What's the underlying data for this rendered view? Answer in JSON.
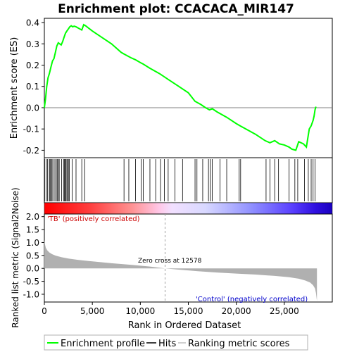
{
  "chart_data": {
    "type": "line",
    "title": "Enrichment plot: CCACACA_MIR147",
    "top_panel": {
      "ylabel": "Enrichment score (ES)",
      "ylim": [
        -0.235,
        0.42
      ],
      "yticks": [
        -0.2,
        -0.1,
        0.0,
        0.1,
        0.2,
        0.3,
        0.4
      ],
      "ytick_labels": [
        "-0.2",
        "-0.1",
        "0.0",
        "0.1",
        "0.2",
        "0.3",
        "0.4"
      ],
      "series": [
        {
          "name": "Enrichment profile",
          "color": "#00ff00",
          "x": [
            0,
            120,
            250,
            380,
            520,
            680,
            850,
            1000,
            1150,
            1300,
            1450,
            1600,
            1750,
            1900,
            2050,
            2200,
            2350,
            2500,
            2650,
            2800,
            2950,
            3100,
            3300,
            3500,
            3700,
            3900,
            4100,
            4300,
            5000,
            6000,
            7000,
            8000,
            8300,
            9000,
            9500,
            10000,
            10300,
            11000,
            12000,
            13000,
            14000,
            15000,
            15700,
            16300,
            16800,
            17200,
            17500,
            18000,
            19000,
            20000,
            20400,
            21000,
            22000,
            23000,
            23500,
            24000,
            24500,
            25000,
            25500,
            25800,
            26200,
            26500,
            27000,
            27300,
            27600,
            27800,
            28000,
            28100,
            28200,
            28300
          ],
          "y": [
            0.0,
            0.04,
            0.1,
            0.14,
            0.16,
            0.19,
            0.22,
            0.23,
            0.26,
            0.29,
            0.305,
            0.3,
            0.295,
            0.31,
            0.33,
            0.35,
            0.36,
            0.37,
            0.38,
            0.385,
            0.38,
            0.383,
            0.38,
            0.375,
            0.37,
            0.365,
            0.39,
            0.385,
            0.36,
            0.33,
            0.3,
            0.26,
            0.252,
            0.235,
            0.225,
            0.212,
            0.205,
            0.185,
            0.16,
            0.13,
            0.1,
            0.07,
            0.03,
            0.015,
            0.0,
            -0.01,
            -0.005,
            -0.02,
            -0.045,
            -0.075,
            -0.085,
            -0.1,
            -0.125,
            -0.155,
            -0.165,
            -0.155,
            -0.17,
            -0.175,
            -0.185,
            -0.195,
            -0.2,
            -0.16,
            -0.17,
            -0.185,
            -0.1,
            -0.085,
            -0.06,
            -0.04,
            -0.01,
            0.005
          ]
        }
      ],
      "zero_line": true
    },
    "hits": [
      30,
      180,
      340,
      520,
      600,
      700,
      800,
      900,
      1100,
      1250,
      1350,
      1500,
      1550,
      1800,
      2000,
      2100,
      2150,
      2250,
      2350,
      2450,
      2500,
      2600,
      2900,
      3300,
      3900,
      4200,
      8300,
      8800,
      9500,
      10100,
      10300,
      11000,
      11600,
      12100,
      12500,
      12900,
      13600,
      14400,
      15700,
      15900,
      16500,
      17100,
      17300,
      17500,
      18300,
      19000,
      20300,
      20450,
      23100,
      23500,
      24000,
      24400,
      25500,
      26100,
      26400,
      27100,
      27500,
      27800,
      28000,
      28200
    ],
    "colorbar": {
      "positive_label": "'TB' (positively correlated)",
      "negative_label": "'Control' (negatively correlated)",
      "positive_color": "#ff0000",
      "negative_color": "#0000ff"
    },
    "bottom_panel": {
      "ylabel": "Ranked list metric (Signal2Noise)",
      "xlabel": "Rank in Ordered Dataset",
      "ylim": [
        -1.3,
        2.1
      ],
      "yticks": [
        -1.0,
        -0.5,
        0.0,
        0.5,
        1.0,
        1.5,
        2.0
      ],
      "ytick_labels": [
        "-1.0",
        "-0.5",
        "0.0",
        "0.5",
        "1.0",
        "1.5",
        "2.0"
      ],
      "xlim": [
        0,
        30000
      ],
      "xticks": [
        0,
        5000,
        10000,
        15000,
        20000,
        25000
      ],
      "xtick_labels": [
        "0",
        "5,000",
        "10,000",
        "15,000",
        "20,000",
        "25,000"
      ],
      "zero_cross_label": "Zero cross at 12578",
      "zero_cross": 12578,
      "n_genes": 28400,
      "metric_curve": {
        "rank": [
          0,
          50,
          150,
          300,
          500,
          800,
          1200,
          1800,
          2500,
          3500,
          5000,
          7000,
          9000,
          11000,
          12578,
          14000,
          16000,
          18000,
          20000,
          22000,
          24000,
          25500,
          26500,
          27200,
          27700,
          28000,
          28200,
          28300,
          28400
        ],
        "value": [
          1.1,
          0.95,
          0.8,
          0.7,
          0.62,
          0.55,
          0.49,
          0.43,
          0.38,
          0.33,
          0.27,
          0.2,
          0.14,
          0.07,
          0.0,
          -0.05,
          -0.11,
          -0.16,
          -0.2,
          -0.24,
          -0.29,
          -0.34,
          -0.4,
          -0.47,
          -0.55,
          -0.65,
          -0.78,
          -0.95,
          -1.25
        ],
        "color": "#b0b0b0"
      }
    },
    "legend": {
      "items": [
        {
          "label": "Enrichment profile",
          "color": "#00ff00"
        },
        {
          "label": "Hits",
          "color": "#000000"
        },
        {
          "label": "Ranking metric scores",
          "color": "#c0c0c0"
        }
      ]
    }
  }
}
